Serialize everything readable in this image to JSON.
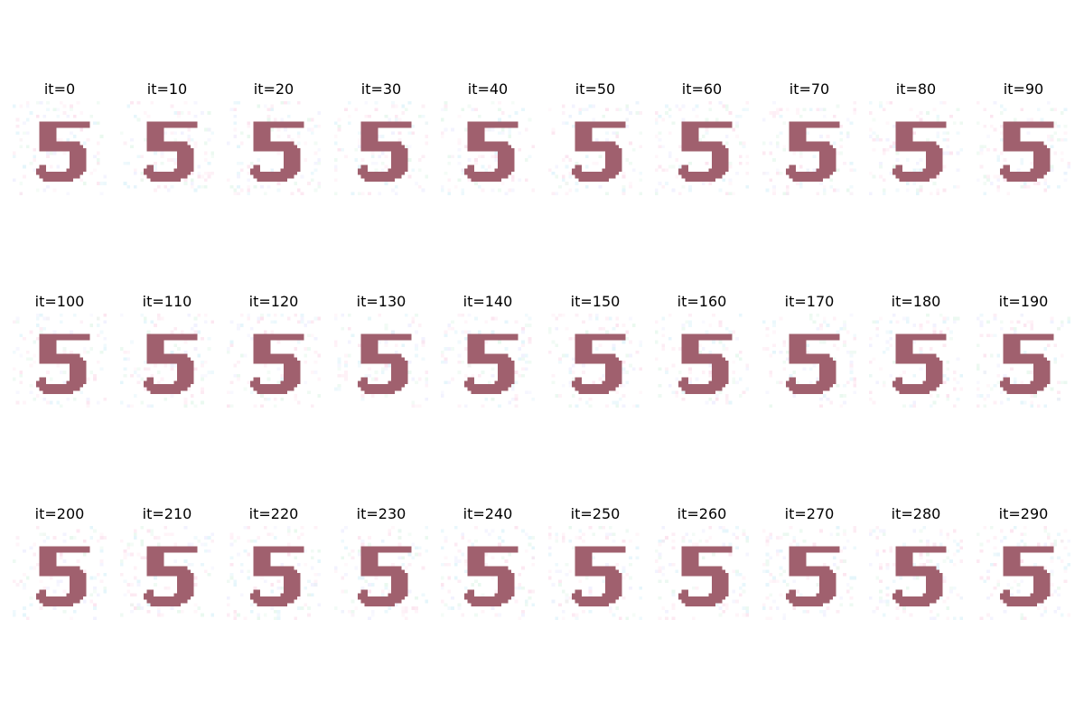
{
  "figure": {
    "panels": [
      {
        "title": "it=0"
      },
      {
        "title": "it=10"
      },
      {
        "title": "it=20"
      },
      {
        "title": "it=30"
      },
      {
        "title": "it=40"
      },
      {
        "title": "it=50"
      },
      {
        "title": "it=60"
      },
      {
        "title": "it=70"
      },
      {
        "title": "it=80"
      },
      {
        "title": "it=90"
      },
      {
        "title": "it=100"
      },
      {
        "title": "it=110"
      },
      {
        "title": "it=120"
      },
      {
        "title": "it=130"
      },
      {
        "title": "it=140"
      },
      {
        "title": "it=150"
      },
      {
        "title": "it=160"
      },
      {
        "title": "it=170"
      },
      {
        "title": "it=180"
      },
      {
        "title": "it=190"
      },
      {
        "title": "it=200"
      },
      {
        "title": "it=210"
      },
      {
        "title": "it=220"
      },
      {
        "title": "it=230"
      },
      {
        "title": "it=240"
      },
      {
        "title": "it=250"
      },
      {
        "title": "it=260"
      },
      {
        "title": "it=270"
      },
      {
        "title": "it=280"
      },
      {
        "title": "it=290"
      }
    ],
    "digit_color": "#a0606e",
    "noise_colors": [
      "#fce4ef",
      "#e3f5fb",
      "#f1f1ff",
      "#fff0f6",
      "#e8f8ee"
    ]
  }
}
